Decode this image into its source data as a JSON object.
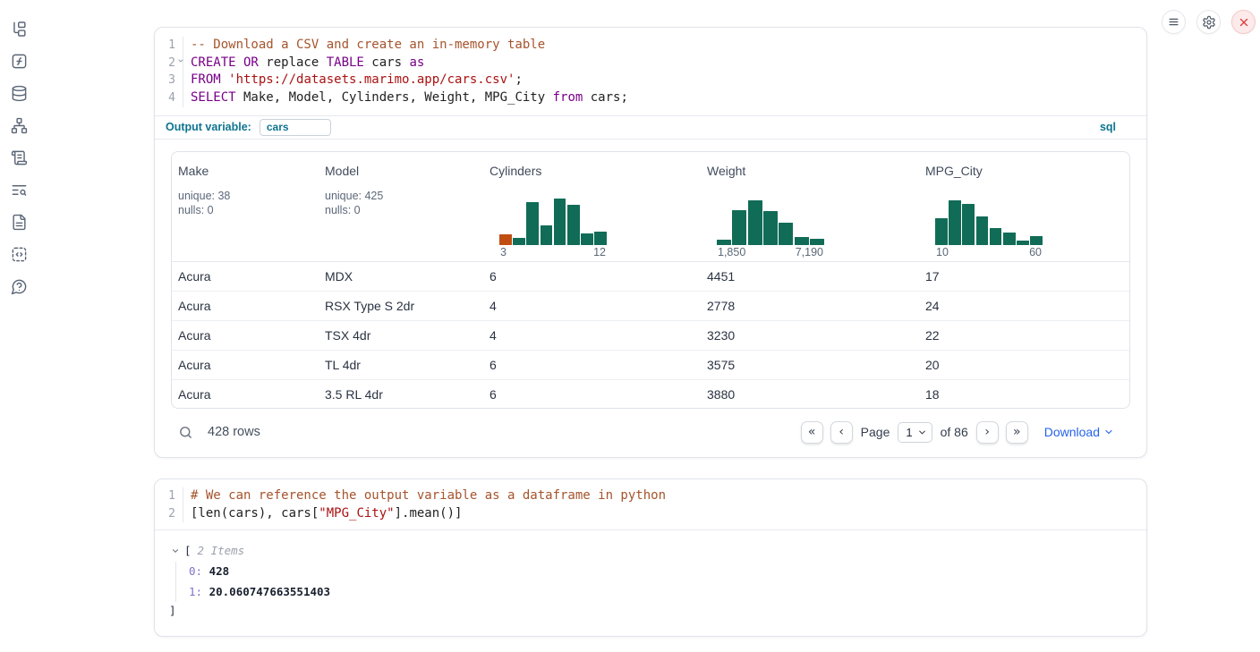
{
  "header": {
    "buttons": [
      {
        "name": "notebook-menu"
      },
      {
        "name": "settings"
      },
      {
        "name": "shutdown"
      }
    ]
  },
  "sidebar": {
    "items": [
      "file-explorer",
      "functions",
      "datasources",
      "dependency-graph",
      "logs",
      "find-in-logs",
      "documentation",
      "snippets",
      "help"
    ]
  },
  "icons": {
    "first_page": "«",
    "prev_page": "‹",
    "next_page": "›",
    "last_page": "»"
  },
  "sql_cell": {
    "language_badge": "sql",
    "output_variable_label": "Output variable:",
    "output_variable_value": "cars",
    "code": [
      {
        "n": "1",
        "fold": false,
        "tokens": [
          {
            "t": "-- Download a CSV and create an in-memory table",
            "c": "com"
          }
        ]
      },
      {
        "n": "2",
        "fold": true,
        "tokens": [
          {
            "t": "CREATE OR",
            "c": "kw"
          },
          {
            "t": " replace ",
            "c": "pln"
          },
          {
            "t": "TABLE",
            "c": "kw"
          },
          {
            "t": " cars ",
            "c": "pln"
          },
          {
            "t": "as",
            "c": "kw"
          }
        ]
      },
      {
        "n": "3",
        "fold": false,
        "tokens": [
          {
            "t": "FROM",
            "c": "kw"
          },
          {
            "t": " ",
            "c": "pln"
          },
          {
            "t": "'https://datasets.marimo.app/cars.csv'",
            "c": "str"
          },
          {
            "t": ";",
            "c": "pln"
          }
        ]
      },
      {
        "n": "4",
        "fold": false,
        "tokens": [
          {
            "t": "SELECT",
            "c": "kw"
          },
          {
            "t": " Make, Model, Cylinders, Weight, MPG_City ",
            "c": "pln"
          },
          {
            "t": "from",
            "c": "kw"
          },
          {
            "t": " cars;",
            "c": "pln"
          }
        ]
      }
    ]
  },
  "table": {
    "columns": [
      {
        "name": "Make",
        "unique": "unique: 38",
        "nulls": "nulls: 0"
      },
      {
        "name": "Model",
        "unique": "unique: 425",
        "nulls": "nulls: 0"
      },
      {
        "name": "Cylinders",
        "histogram": {
          "min_label": "3",
          "max_label": "12",
          "bars": [
            22,
            15,
            92,
            42,
            100,
            86,
            24,
            29
          ],
          "bar_color": "#116c57",
          "first_bar_color": "#c04e12"
        }
      },
      {
        "name": "Weight",
        "histogram": {
          "min_label": "1,850",
          "max_label": "7,190",
          "bars": [
            12,
            75,
            95,
            73,
            47,
            17,
            13
          ],
          "bar_color": "#116c57"
        }
      },
      {
        "name": "MPG_City",
        "histogram": {
          "min_label": "10",
          "max_label": "60",
          "bars": [
            58,
            95,
            88,
            62,
            37,
            26,
            10,
            18
          ],
          "bar_color": "#116c57"
        }
      }
    ],
    "rows": [
      [
        "Acura",
        "MDX",
        "6",
        "4451",
        "17"
      ],
      [
        "Acura",
        "RSX Type S 2dr",
        "4",
        "2778",
        "24"
      ],
      [
        "Acura",
        "TSX 4dr",
        "4",
        "3230",
        "22"
      ],
      [
        "Acura",
        "TL 4dr",
        "6",
        "3575",
        "20"
      ],
      [
        "Acura",
        "3.5 RL 4dr",
        "6",
        "3880",
        "18"
      ]
    ],
    "footer": {
      "row_count": "428 rows",
      "page_label": "Page",
      "page_value": "1",
      "total_label": "of 86",
      "download_label": "Download"
    }
  },
  "python_cell": {
    "code": [
      {
        "n": "1",
        "fold": false,
        "tokens": [
          {
            "t": "# We can reference the output variable as a dataframe in python",
            "c": "com"
          }
        ]
      },
      {
        "n": "2",
        "fold": false,
        "tokens": [
          {
            "t": "[len(cars), cars[",
            "c": "pln"
          },
          {
            "t": "\"MPG_City\"",
            "c": "str"
          },
          {
            "t": "].mean()]",
            "c": "pln"
          }
        ]
      }
    ],
    "output": {
      "bracket_open": "[",
      "items_label": "2 Items",
      "entries": [
        {
          "key": "0:",
          "value": "428"
        },
        {
          "key": "1:",
          "value": "20.060747663551403"
        }
      ],
      "bracket_close": "]"
    }
  },
  "colors": {
    "accent_teal": "#0e7490",
    "hist_green": "#116c57",
    "hist_orange": "#c04e12",
    "link_blue": "#2563eb"
  }
}
